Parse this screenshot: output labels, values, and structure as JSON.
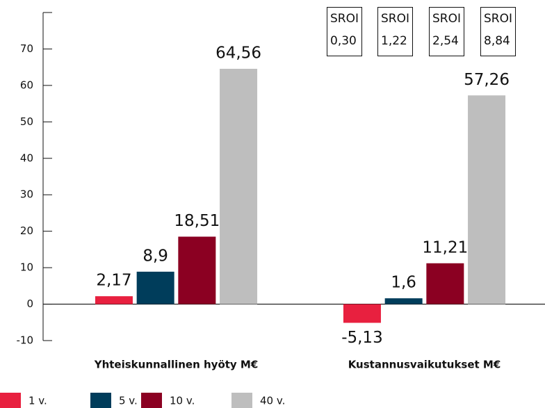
{
  "chart_data": {
    "type": "bar",
    "categories": [
      "Yhteiskunnallinen hyöty M€",
      "Kustannusvaikutukset M€"
    ],
    "series": [
      {
        "name": "1 v.",
        "color": "#e8203f",
        "values": [
          2.17,
          -5.13
        ],
        "value_labels": [
          "2,17",
          "-5,13"
        ]
      },
      {
        "name": "5 v.",
        "color": "#003d5b",
        "values": [
          8.9,
          1.6
        ],
        "value_labels": [
          "8,9",
          "1,6"
        ]
      },
      {
        "name": "10 v.",
        "color": "#8b0022",
        "values": [
          18.51,
          11.21
        ],
        "value_labels": [
          "18,51",
          "11,21"
        ]
      },
      {
        "name": "40 v.",
        "color": "#bebebe",
        "values": [
          64.56,
          57.26
        ],
        "value_labels": [
          "64,56",
          "57,26"
        ]
      }
    ],
    "ylim": [
      -10,
      80
    ],
    "yticks": [
      -10,
      0,
      10,
      20,
      30,
      40,
      50,
      60,
      70
    ],
    "legend": "bottom-left",
    "annotations": [
      {
        "label": "SROI",
        "value": "0,30"
      },
      {
        "label": "SROI",
        "value": "1,22"
      },
      {
        "label": "SROI",
        "value": "2,54"
      },
      {
        "label": "SROI",
        "value": "8,84"
      }
    ]
  }
}
